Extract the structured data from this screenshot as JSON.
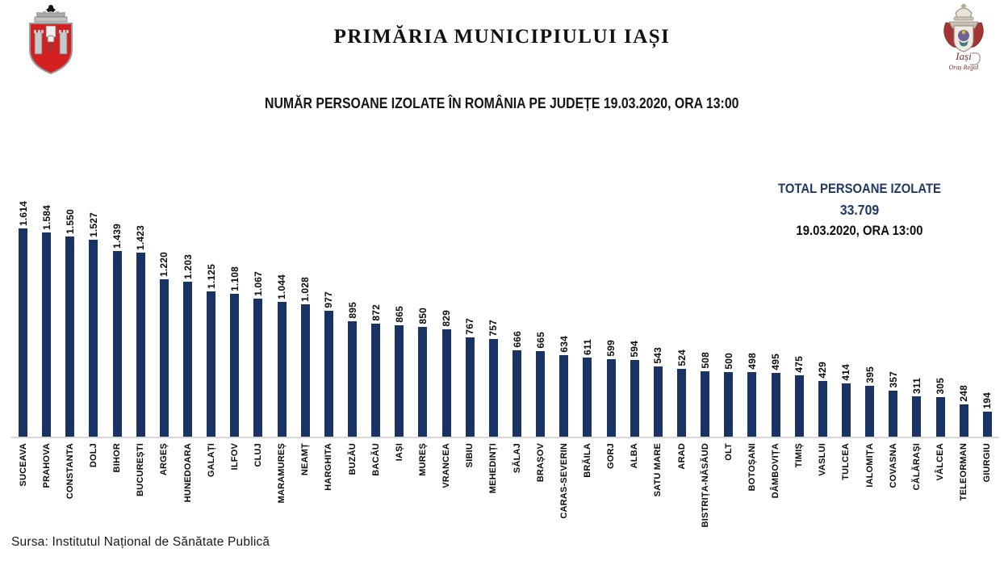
{
  "header": {
    "title": "PRIMĂRIA MUNICIPIULUI IAȘI",
    "subtitle": "NUMĂR PERSOANE IZOLATE ÎN ROMÂNIA PE JUDEȚE 19.03.2020, ORA 13:00"
  },
  "logos": {
    "left": "iasi-city-coat-of-arms",
    "right": "iasi-royal-emblem",
    "right_caption_line1": "Iași",
    "right_caption_line2": "Oraș Regal"
  },
  "total_box": {
    "line1": "TOTAL PERSOANE IZOLATE",
    "line2": "33.709",
    "line3": "19.03.2020, ORA 13:00"
  },
  "footer": {
    "source": "Sursa: Institutul Național de Sănătate Publică"
  },
  "colors": {
    "bar": "#1a3365",
    "accent_navy": "#1f3864",
    "axis": "#d8d8d8",
    "shield_red": "#d42020"
  },
  "chart_data": {
    "type": "bar",
    "title": "NUMĂR PERSOANE IZOLATE ÎN ROMÂNIA PE JUDEȚE 19.03.2020, ORA 13:00",
    "xlabel": "",
    "ylabel": "",
    "ylim": [
      0,
      1700
    ],
    "grid": false,
    "legend": false,
    "bar_color": "#1a3365",
    "categories": [
      "SUCEAVA",
      "PRAHOVA",
      "CONSTANTA",
      "DOLJ",
      "BIHOR",
      "BUCUREȘTI",
      "ARGEȘ",
      "HUNEDOARA",
      "GALAȚI",
      "ILFOV",
      "CLUJ",
      "MARAMUREȘ",
      "NEAMȚ",
      "HARGHITA",
      "BUZĂU",
      "BACĂU",
      "IAȘI",
      "MUREȘ",
      "VRANCEA",
      "SIBIU",
      "MEHEDINȚI",
      "SĂLAJ",
      "BRAȘOV",
      "CARAS-SEVERIN",
      "BRĂILA",
      "GORJ",
      "ALBA",
      "SATU MARE",
      "ARAD",
      "BISTRIȚA-NĂSĂUD",
      "OLT",
      "BOTOȘANI",
      "DÂMBOVIȚA",
      "TIMIȘ",
      "VASLUI",
      "TULCEA",
      "IALOMIȚA",
      "COVASNA",
      "CĂLĂRAȘI",
      "VÂLCEA",
      "TELEORMAN",
      "GIURGIU"
    ],
    "values": [
      1614,
      1584,
      1550,
      1527,
      1439,
      1423,
      1220,
      1203,
      1125,
      1108,
      1067,
      1044,
      1028,
      977,
      895,
      872,
      865,
      850,
      829,
      767,
      757,
      666,
      665,
      634,
      611,
      599,
      594,
      543,
      524,
      508,
      500,
      498,
      495,
      475,
      429,
      414,
      395,
      357,
      311,
      305,
      248,
      194
    ],
    "value_labels": [
      "1.614",
      "1.584",
      "1.550",
      "1.527",
      "1.439",
      "1.423",
      "1.220",
      "1.203",
      "1.125",
      "1.108",
      "1.067",
      "1.044",
      "1.028",
      "977",
      "895",
      "872",
      "865",
      "850",
      "829",
      "767",
      "757",
      "666",
      "665",
      "634",
      "611",
      "599",
      "594",
      "543",
      "524",
      "508",
      "500",
      "498",
      "495",
      "475",
      "429",
      "414",
      "395",
      "357",
      "311",
      "305",
      "248",
      "194"
    ],
    "total_label": "TOTAL PERSOANE IZOLATE",
    "total_value": 33709,
    "as_of": "19.03.2020, ORA 13:00"
  }
}
